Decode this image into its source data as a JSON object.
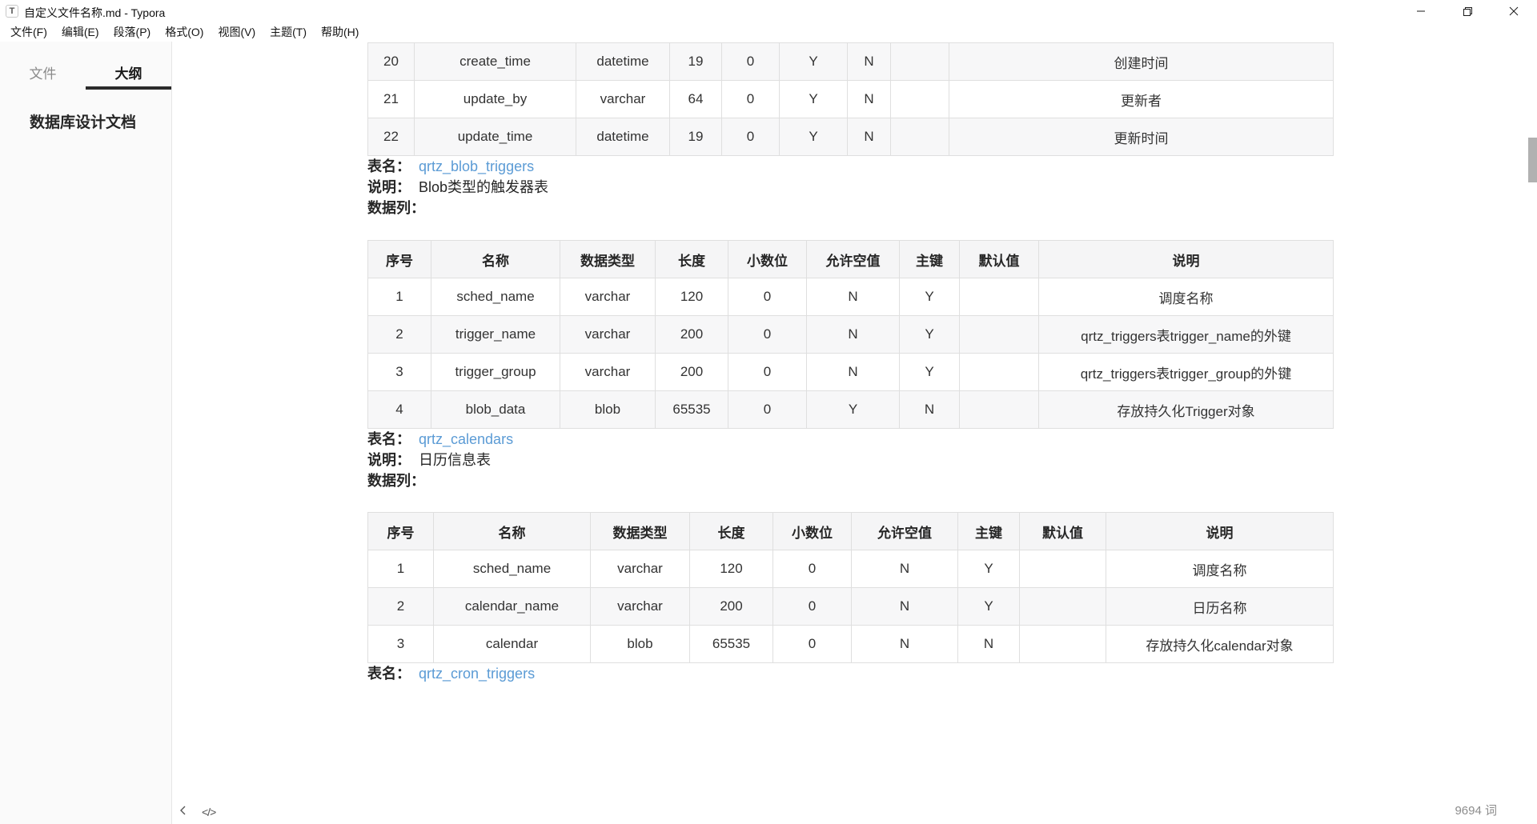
{
  "window": {
    "app_icon_letter": "T",
    "title": "自定义文件名称.md - Typora"
  },
  "menu": {
    "items": [
      "文件(F)",
      "编辑(E)",
      "段落(P)",
      "格式(O)",
      "视图(V)",
      "主题(T)",
      "帮助(H)"
    ]
  },
  "sidebar": {
    "tabs": [
      {
        "label": "文件",
        "active": false
      },
      {
        "label": "大纲",
        "active": true
      }
    ],
    "outline": [
      {
        "label": "数据库设计文档"
      }
    ]
  },
  "doc": {
    "partial_table": {
      "rows": [
        [
          "20",
          "create_time",
          "datetime",
          "19",
          "0",
          "Y",
          "N",
          "",
          "创建时间"
        ],
        [
          "21",
          "update_by",
          "varchar",
          "64",
          "0",
          "Y",
          "N",
          "",
          "更新者"
        ],
        [
          "22",
          "update_time",
          "datetime",
          "19",
          "0",
          "Y",
          "N",
          "",
          "更新时间"
        ]
      ]
    },
    "sections": [
      {
        "name_label": "表名：",
        "name": "qrtz_blob_triggers",
        "desc_label": "说明：",
        "desc": "Blob类型的触发器表",
        "cols_label": "数据列：",
        "table": {
          "headers": [
            "序号",
            "名称",
            "数据类型",
            "长度",
            "小数位",
            "允许空值",
            "主键",
            "默认值",
            "说明"
          ],
          "rows": [
            [
              "1",
              "sched_name",
              "varchar",
              "120",
              "0",
              "N",
              "Y",
              "",
              "调度名称"
            ],
            [
              "2",
              "trigger_name",
              "varchar",
              "200",
              "0",
              "N",
              "Y",
              "",
              "qrtz_triggers表trigger_name的外键"
            ],
            [
              "3",
              "trigger_group",
              "varchar",
              "200",
              "0",
              "N",
              "Y",
              "",
              "qrtz_triggers表trigger_group的外键"
            ],
            [
              "4",
              "blob_data",
              "blob",
              "65535",
              "0",
              "Y",
              "N",
              "",
              "存放持久化Trigger对象"
            ]
          ]
        }
      },
      {
        "name_label": "表名：",
        "name": "qrtz_calendars",
        "desc_label": "说明：",
        "desc": "日历信息表",
        "cols_label": "数据列：",
        "table": {
          "headers": [
            "序号",
            "名称",
            "数据类型",
            "长度",
            "小数位",
            "允许空值",
            "主键",
            "默认值",
            "说明"
          ],
          "rows": [
            [
              "1",
              "sched_name",
              "varchar",
              "120",
              "0",
              "N",
              "Y",
              "",
              "调度名称"
            ],
            [
              "2",
              "calendar_name",
              "varchar",
              "200",
              "0",
              "N",
              "Y",
              "",
              "日历名称"
            ],
            [
              "3",
              "calendar",
              "blob",
              "65535",
              "0",
              "N",
              "N",
              "",
              "存放持久化calendar对象"
            ]
          ]
        }
      },
      {
        "name_label": "表名：",
        "name": "qrtz_cron_triggers"
      }
    ]
  },
  "footer": {
    "word_count": "9694 词",
    "icons": {
      "back": "chevron-left",
      "source_code_glyph": "</>"
    }
  },
  "colors": {
    "link": "#5b9bd5",
    "table_border": "#dfdfdf",
    "stripe": "#f7f7f8",
    "sidebar_bg": "#fafafa"
  }
}
